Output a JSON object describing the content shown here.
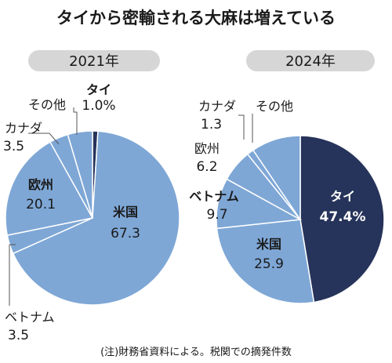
{
  "title": "タイから密輸される大麻は増えている",
  "note": "(注)財務省資料による。税関での摘発件数",
  "colors": {
    "light": "#7ea7d6",
    "dark": "#26335a",
    "stroke": "#ffffff",
    "leader": "#555555",
    "pill": "#d6d6d6"
  },
  "chart_data": [
    {
      "type": "pie",
      "title": "2021年",
      "slices": [
        {
          "label": "タイ",
          "value": 1.0,
          "display": "1.0%"
        },
        {
          "label": "米国",
          "value": 67.3,
          "display": "67.3"
        },
        {
          "label": "ベトナム",
          "value": 3.5,
          "display": "3.5"
        },
        {
          "label": "欧州",
          "value": 20.1,
          "display": "20.1"
        },
        {
          "label": "カナダ",
          "value": 3.5,
          "display": "3.5"
        },
        {
          "label": "その他",
          "value": 4.6,
          "display": ""
        }
      ],
      "highlight": "タイ"
    },
    {
      "type": "pie",
      "title": "2024年",
      "slices": [
        {
          "label": "タイ",
          "value": 47.4,
          "display": "47.4%"
        },
        {
          "label": "米国",
          "value": 25.9,
          "display": "25.9"
        },
        {
          "label": "ベトナム",
          "value": 9.7,
          "display": "9.7"
        },
        {
          "label": "欧州",
          "value": 6.2,
          "display": "6.2"
        },
        {
          "label": "カナダ",
          "value": 1.3,
          "display": "1.3"
        },
        {
          "label": "その他",
          "value": 9.5,
          "display": ""
        }
      ],
      "highlight": "タイ"
    }
  ]
}
